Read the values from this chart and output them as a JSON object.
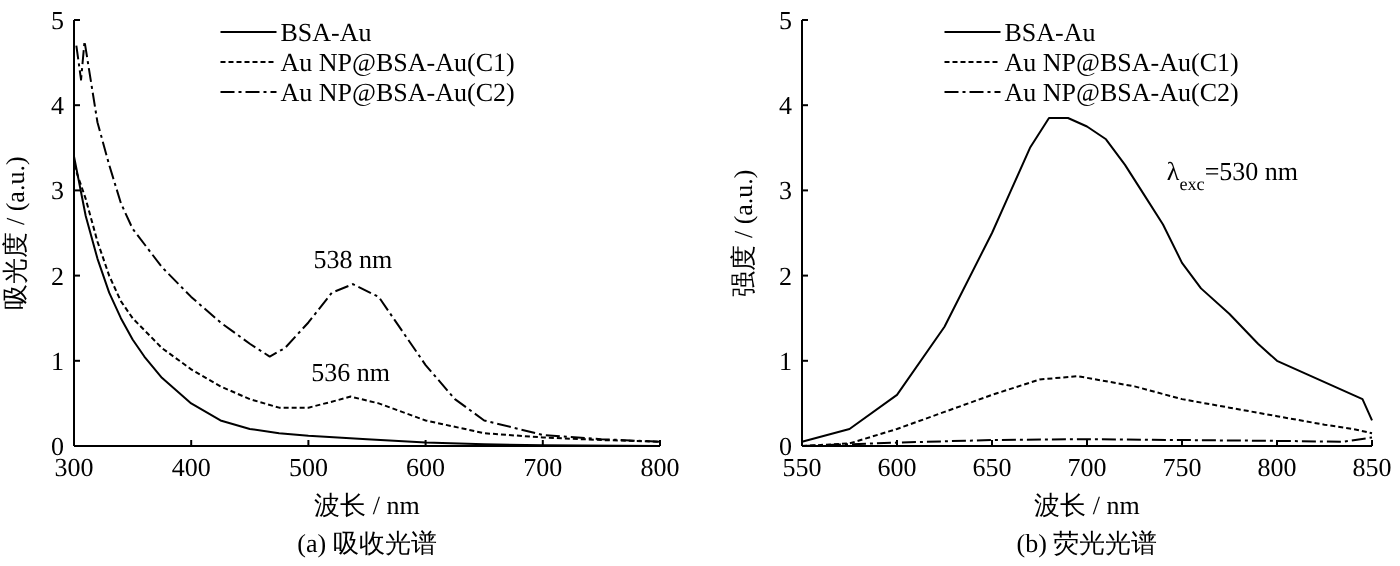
{
  "chart_data": [
    {
      "type": "line",
      "title": "(a) 吸收光谱",
      "xlabel": "波长 / nm",
      "ylabel": "吸光度 / (a.u.)",
      "xlim": [
        300,
        800
      ],
      "ylim": [
        0,
        5
      ],
      "xticks": [
        300,
        400,
        500,
        600,
        700,
        800
      ],
      "yticks": [
        0,
        1,
        2,
        3,
        4,
        5
      ],
      "legend": "top",
      "annotations": [
        {
          "text": "538 nm",
          "x": 538,
          "y": 1.9
        },
        {
          "text": "536 nm",
          "x": 536,
          "y": 0.58
        }
      ],
      "series": [
        {
          "name": "BSA-Au",
          "color": "#000000",
          "line_style": "solid",
          "x": [
            300,
            310,
            320,
            330,
            340,
            350,
            360,
            375,
            400,
            425,
            450,
            475,
            500,
            550,
            600,
            650,
            700,
            800
          ],
          "values": [
            3.4,
            2.7,
            2.2,
            1.8,
            1.5,
            1.25,
            1.05,
            0.8,
            0.5,
            0.3,
            0.2,
            0.15,
            0.12,
            0.08,
            0.04,
            0.02,
            0.01,
            0.0
          ]
        },
        {
          "name": "Au NP@BSA-Au(C1)",
          "color": "#000000",
          "line_style": "dashed",
          "x": [
            300,
            310,
            320,
            330,
            340,
            350,
            375,
            400,
            425,
            450,
            475,
            500,
            520,
            536,
            560,
            600,
            650,
            700,
            750,
            800
          ],
          "values": [
            3.3,
            2.9,
            2.4,
            2.0,
            1.7,
            1.5,
            1.15,
            0.9,
            0.7,
            0.55,
            0.45,
            0.45,
            0.52,
            0.58,
            0.5,
            0.3,
            0.15,
            0.1,
            0.07,
            0.05
          ]
        },
        {
          "name": "Au NP@BSA-Au(C2)",
          "color": "#000000",
          "line_style": "dashdot",
          "x": [
            302,
            306,
            309,
            320,
            330,
            340,
            350,
            375,
            400,
            425,
            450,
            467,
            480,
            500,
            520,
            538,
            560,
            580,
            600,
            625,
            650,
            700,
            750,
            800
          ],
          "values": [
            4.7,
            4.3,
            4.75,
            3.8,
            3.3,
            2.85,
            2.55,
            2.1,
            1.75,
            1.45,
            1.2,
            1.05,
            1.15,
            1.45,
            1.8,
            1.9,
            1.75,
            1.35,
            0.95,
            0.55,
            0.3,
            0.13,
            0.08,
            0.05
          ]
        }
      ]
    },
    {
      "type": "line",
      "title": "(b) 荧光光谱",
      "xlabel": "波长 / nm",
      "ylabel": "强度 / (a.u.)",
      "xlim": [
        550,
        850
      ],
      "ylim": [
        0,
        5
      ],
      "xticks": [
        550,
        600,
        650,
        700,
        750,
        800,
        850
      ],
      "yticks": [
        0,
        1,
        2,
        3,
        4,
        5
      ],
      "legend": "top",
      "annotations": [
        "λ$_{exc}$=530 nm"
      ],
      "series": [
        {
          "name": "BSA-Au",
          "color": "#000000",
          "line_style": "solid",
          "x": [
            550,
            575,
            600,
            625,
            650,
            660,
            670,
            680,
            690,
            700,
            710,
            720,
            730,
            740,
            750,
            760,
            775,
            790,
            800,
            815,
            830,
            840,
            845,
            848,
            850
          ],
          "values": [
            0.05,
            0.2,
            0.6,
            1.4,
            2.5,
            3.0,
            3.5,
            3.85,
            3.85,
            3.75,
            3.6,
            3.3,
            2.95,
            2.6,
            2.15,
            1.85,
            1.55,
            1.2,
            1.0,
            0.85,
            0.7,
            0.6,
            0.55,
            0.4,
            0.3
          ]
        },
        {
          "name": "Au NP@BSA-Au(C1)",
          "color": "#000000",
          "line_style": "dashed",
          "x": [
            550,
            575,
            600,
            625,
            650,
            675,
            695,
            725,
            750,
            775,
            800,
            825,
            840,
            850
          ],
          "values": [
            0.0,
            0.03,
            0.2,
            0.4,
            0.6,
            0.78,
            0.82,
            0.7,
            0.55,
            0.45,
            0.35,
            0.25,
            0.2,
            0.15
          ]
        },
        {
          "name": "Au NP@BSA-Au(C2)",
          "color": "#000000",
          "line_style": "dashdot",
          "x": [
            550,
            600,
            650,
            700,
            750,
            800,
            835,
            850
          ],
          "values": [
            0.0,
            0.04,
            0.07,
            0.08,
            0.07,
            0.06,
            0.05,
            0.1
          ]
        }
      ]
    }
  ]
}
